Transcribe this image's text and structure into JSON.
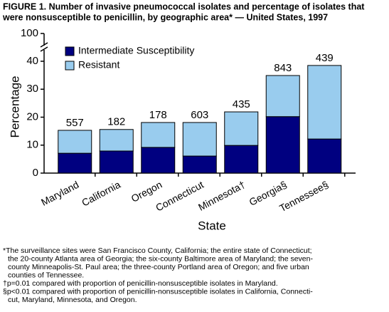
{
  "chart_data": {
    "type": "stacked_bar",
    "title": [
      "FIGURE 1. Number of invasive pneumococcal isolates and percentage of isolates that",
      "were nonsusceptible to penicillin, by geographic area* — United States, 1997"
    ],
    "x_label": "State",
    "y_label": "Percentage",
    "categories": [
      "Maryland",
      "California",
      "Oregon",
      "Connecticut",
      "Minnesota†",
      "Georgia§",
      "Tennessee§"
    ],
    "series": [
      {
        "name": "Intermediate Susceptibility",
        "color": "#000080",
        "values": [
          7.1,
          7.9,
          9.2,
          6.1,
          9.9,
          20.2,
          12.2
        ]
      },
      {
        "name": "Resistant",
        "color": "#99ccee",
        "values": [
          8.2,
          7.7,
          8.9,
          12.0,
          12.0,
          14.7,
          26.3
        ]
      }
    ],
    "isolates": [
      557,
      182,
      178,
      603,
      435,
      843,
      439
    ],
    "ylim": [
      0,
      40
    ],
    "yticks": [
      0,
      10,
      20,
      30,
      40
    ],
    "axis_break_tick": 100,
    "legend": "upper left",
    "footnotes": [
      "*The surveillance sites were San Francisco County, California; the entire state of Connecticut;",
      "the 20-county Atlanta area of Georgia; the six-county Baltimore area of Maryland; the seven-",
      "county Minneapolis-St. Paul area; the three-county Portland area of Oregon; and five urban",
      "counties of Tennessee.",
      "†p=0.01 compared with proportion of penicillin-nonsusceptible isolates in Maryland.",
      "§p<0.01 compared with proportion of penicillin-nonsusceptible isolates in California, Connecti-",
      "cut, Maryland, Minnesota, and Oregon."
    ]
  }
}
